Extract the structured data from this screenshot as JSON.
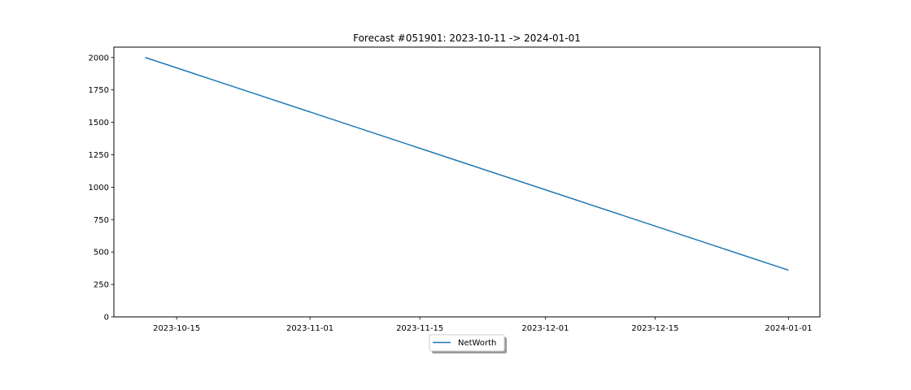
{
  "chart_data": {
    "type": "line",
    "title": "Forecast #051901: 2023-10-11 -> 2024-01-01",
    "xlabel": "",
    "ylabel": "",
    "x": [
      "2023-10-11",
      "2024-01-01"
    ],
    "series": [
      {
        "name": "NetWorth",
        "values": [
          2000,
          360
        ],
        "color": "#1f77b4"
      }
    ],
    "xlim": [
      "2023-10-07",
      "2024-01-05"
    ],
    "ylim": [
      0,
      2080
    ],
    "xticks": [
      "2023-10-15",
      "2023-11-01",
      "2023-11-15",
      "2023-12-01",
      "2023-12-15",
      "2024-01-01"
    ],
    "yticks": [
      0,
      250,
      500,
      750,
      1000,
      1250,
      1500,
      1750,
      2000
    ],
    "grid": false,
    "legend_position": "bottom-center"
  }
}
